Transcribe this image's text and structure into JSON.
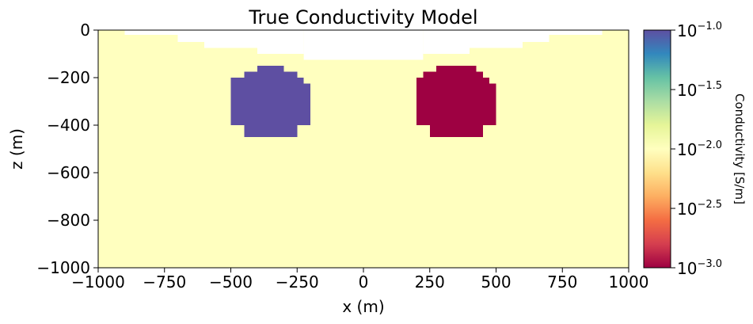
{
  "chart_data": {
    "type": "heatmap",
    "title": "True Conductivity Model",
    "xlabel": "x (m)",
    "ylabel": "z (m)",
    "xlim": [
      -1000,
      1000
    ],
    "ylim": [
      -1000,
      0
    ],
    "x_ticks": [
      -1000,
      -750,
      -500,
      -250,
      0,
      250,
      500,
      750,
      1000
    ],
    "x_tick_labels": [
      "−1000",
      "−750",
      "−500",
      "−250",
      "0",
      "250",
      "500",
      "750",
      "1000"
    ],
    "y_ticks": [
      0,
      -200,
      -400,
      -600,
      -800,
      -1000
    ],
    "y_tick_labels": [
      "0",
      "−200",
      "−400",
      "−600",
      "−800",
      "−1000"
    ],
    "colormap": "Spectral",
    "log_scale": true,
    "background_conductivity": 0.01,
    "air_color": "#ffffff",
    "colorbar": {
      "label": "Conductivity [S/m]",
      "range": [
        0.001,
        0.1
      ],
      "tick_values": [
        0.001,
        0.00316,
        0.01,
        0.0316,
        0.1
      ],
      "tick_bases": [
        "10",
        "10",
        "10",
        "10",
        "10"
      ],
      "tick_exponents": [
        "−3.0",
        "−2.5",
        "−2.0",
        "−1.5",
        "−1.0"
      ],
      "gradient_stops": [
        "#9e0142",
        "#d53e4f",
        "#f46d43",
        "#fdae61",
        "#fee08b",
        "#ffffbf",
        "#e6f598",
        "#abdda4",
        "#66c2a5",
        "#3288bd",
        "#5e4fa2"
      ]
    },
    "surface_topography": [
      {
        "x_from": -1000,
        "x_to": -900,
        "z": 0
      },
      {
        "x_from": -900,
        "x_to": -700,
        "z": -20
      },
      {
        "x_from": -700,
        "x_to": -600,
        "z": -50
      },
      {
        "x_from": -600,
        "x_to": -400,
        "z": -75
      },
      {
        "x_from": -400,
        "x_to": -225,
        "z": -100
      },
      {
        "x_from": -225,
        "x_to": 225,
        "z": -125
      },
      {
        "x_from": 225,
        "x_to": 400,
        "z": -100
      },
      {
        "x_from": 400,
        "x_to": 600,
        "z": -75
      },
      {
        "x_from": 600,
        "x_to": 700,
        "z": -50
      },
      {
        "x_from": 700,
        "x_to": 900,
        "z": -20
      },
      {
        "x_from": 900,
        "x_to": 1000,
        "z": 0
      }
    ],
    "anomalies": [
      {
        "conductivity": 0.1,
        "color": "#5e4fa2",
        "center_x": -350,
        "center_z": -300,
        "blocks": [
          {
            "x_from": -400,
            "x_to": -300,
            "z_top": -150,
            "z_bottom": -175
          },
          {
            "x_from": -450,
            "x_to": -250,
            "z_top": -175,
            "z_bottom": -200
          },
          {
            "x_from": -500,
            "x_to": -225,
            "z_top": -200,
            "z_bottom": -225
          },
          {
            "x_from": -500,
            "x_to": -200,
            "z_top": -225,
            "z_bottom": -400
          },
          {
            "x_from": -450,
            "x_to": -250,
            "z_top": -400,
            "z_bottom": -450
          }
        ]
      },
      {
        "conductivity": 0.001,
        "color": "#9e0142",
        "center_x": 350,
        "center_z": -300,
        "blocks": [
          {
            "x_from": 275,
            "x_to": 425,
            "z_top": -150,
            "z_bottom": -175
          },
          {
            "x_from": 225,
            "x_to": 450,
            "z_top": -175,
            "z_bottom": -200
          },
          {
            "x_from": 200,
            "x_to": 475,
            "z_top": -200,
            "z_bottom": -225
          },
          {
            "x_from": 200,
            "x_to": 500,
            "z_top": -225,
            "z_bottom": -400
          },
          {
            "x_from": 250,
            "x_to": 450,
            "z_top": -400,
            "z_bottom": -450
          }
        ]
      }
    ]
  }
}
